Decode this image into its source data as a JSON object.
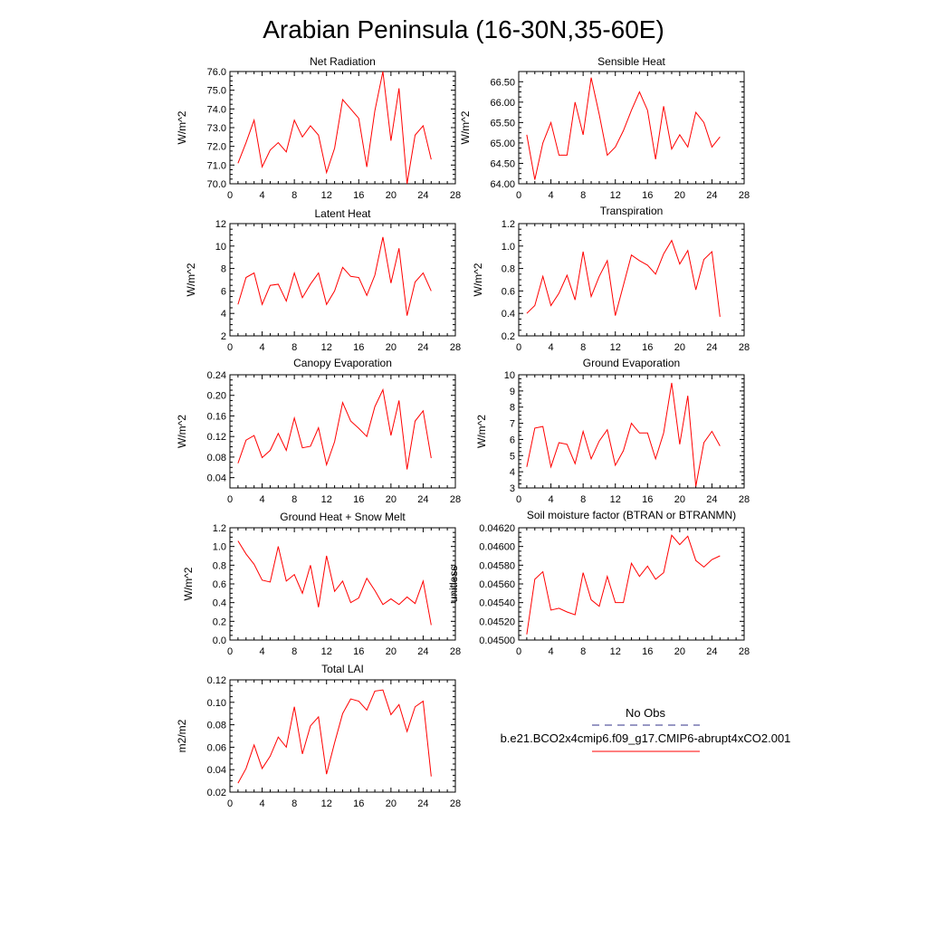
{
  "title": "Arabian Peninsula (16-30N,35-60E)",
  "legend": {
    "obs_label": "No Obs",
    "obs_color": "#5a5aa0",
    "model_label": "b.e21.BCO2x4cmip6.f09_g17.CMIP6-abrupt4xCO2.001",
    "model_color": "#ff0000"
  },
  "chart_data": [
    {
      "type": "line",
      "title": "Net Radiation",
      "ylabel": "W/m^2",
      "xlim": [
        0,
        28
      ],
      "xticks": [
        0,
        4,
        8,
        12,
        16,
        20,
        24,
        28
      ],
      "ylim": [
        70.0,
        76.0
      ],
      "yticks": [
        70.0,
        71.0,
        72.0,
        73.0,
        74.0,
        75.0,
        76.0
      ],
      "ytick_labels": [
        "70.0",
        "71.0",
        "72.0",
        "73.0",
        "74.0",
        "75.0",
        "76.0"
      ],
      "x": [
        1,
        2,
        3,
        4,
        5,
        6,
        7,
        8,
        9,
        10,
        11,
        12,
        13,
        14,
        15,
        16,
        17,
        18,
        19,
        20,
        21,
        22,
        23,
        24,
        25
      ],
      "series": [
        {
          "color": "#ff0000",
          "values": [
            71.1,
            72.2,
            73.4,
            70.9,
            71.8,
            72.2,
            71.7,
            73.4,
            72.5,
            73.1,
            72.6,
            70.6,
            71.9,
            74.5,
            74.0,
            73.5,
            70.9,
            73.9,
            76.0,
            72.3,
            75.1,
            70.0,
            72.6,
            73.1,
            71.3
          ]
        }
      ]
    },
    {
      "type": "line",
      "title": "Sensible Heat",
      "ylabel": "W/m^2",
      "xlim": [
        0,
        28
      ],
      "xticks": [
        0,
        4,
        8,
        12,
        16,
        20,
        24,
        28
      ],
      "ylim": [
        64.0,
        66.75
      ],
      "yticks": [
        64.0,
        64.5,
        65.0,
        65.5,
        66.0,
        66.5
      ],
      "ytick_labels": [
        "64.00",
        "64.50",
        "65.00",
        "65.50",
        "66.00",
        "66.50"
      ],
      "x": [
        1,
        2,
        3,
        4,
        5,
        6,
        7,
        8,
        9,
        10,
        11,
        12,
        13,
        14,
        15,
        16,
        17,
        18,
        19,
        20,
        21,
        22,
        23,
        24,
        25
      ],
      "series": [
        {
          "color": "#ff0000",
          "values": [
            65.2,
            64.1,
            65.0,
            65.5,
            64.7,
            64.7,
            66.0,
            65.2,
            66.6,
            65.7,
            64.7,
            64.9,
            65.3,
            65.8,
            66.25,
            65.8,
            64.6,
            65.9,
            64.85,
            65.2,
            64.9,
            65.75,
            65.5,
            64.9,
            65.15
          ]
        }
      ]
    },
    {
      "type": "line",
      "title": "Latent Heat",
      "ylabel": "W/m^2",
      "xlim": [
        0,
        28
      ],
      "xticks": [
        0,
        4,
        8,
        12,
        16,
        20,
        24,
        28
      ],
      "ylim": [
        2,
        12
      ],
      "yticks": [
        2,
        4,
        6,
        8,
        10,
        12
      ],
      "ytick_labels": [
        "2",
        "4",
        "6",
        "8",
        "10",
        "12"
      ],
      "x": [
        1,
        2,
        3,
        4,
        5,
        6,
        7,
        8,
        9,
        10,
        11,
        12,
        13,
        14,
        15,
        16,
        17,
        18,
        19,
        20,
        21,
        22,
        23,
        24,
        25
      ],
      "series": [
        {
          "color": "#ff0000",
          "values": [
            4.8,
            7.2,
            7.6,
            4.8,
            6.5,
            6.6,
            5.1,
            7.6,
            5.4,
            6.6,
            7.6,
            4.8,
            6.0,
            8.1,
            7.3,
            7.2,
            5.6,
            7.4,
            10.8,
            6.7,
            9.8,
            3.8,
            6.8,
            7.6,
            6.0
          ]
        }
      ]
    },
    {
      "type": "line",
      "title": "Transpiration",
      "ylabel": "W/m^2",
      "xlim": [
        0,
        28
      ],
      "xticks": [
        0,
        4,
        8,
        12,
        16,
        20,
        24,
        28
      ],
      "ylim": [
        0.2,
        1.2
      ],
      "yticks": [
        0.2,
        0.4,
        0.6,
        0.8,
        1.0,
        1.2
      ],
      "ytick_labels": [
        "0.2",
        "0.4",
        "0.6",
        "0.8",
        "1.0",
        "1.2"
      ],
      "x": [
        1,
        2,
        3,
        4,
        5,
        6,
        7,
        8,
        9,
        10,
        11,
        12,
        13,
        14,
        15,
        16,
        17,
        18,
        19,
        20,
        21,
        22,
        23,
        24,
        25
      ],
      "series": [
        {
          "color": "#ff0000",
          "values": [
            0.4,
            0.47,
            0.73,
            0.47,
            0.58,
            0.74,
            0.52,
            0.95,
            0.55,
            0.73,
            0.87,
            0.38,
            0.65,
            0.92,
            0.87,
            0.83,
            0.75,
            0.93,
            1.05,
            0.84,
            0.96,
            0.61,
            0.88,
            0.95,
            0.37
          ]
        }
      ]
    },
    {
      "type": "line",
      "title": "Canopy Evaporation",
      "ylabel": "W/m^2",
      "xlim": [
        0,
        28
      ],
      "xticks": [
        0,
        4,
        8,
        12,
        16,
        20,
        24,
        28
      ],
      "ylim": [
        0.02,
        0.24
      ],
      "yticks": [
        0.04,
        0.08,
        0.12,
        0.16,
        0.2,
        0.24
      ],
      "ytick_labels": [
        "0.04",
        "0.08",
        "0.12",
        "0.16",
        "0.20",
        "0.24"
      ],
      "x": [
        1,
        2,
        3,
        4,
        5,
        6,
        7,
        8,
        9,
        10,
        11,
        12,
        13,
        14,
        15,
        16,
        17,
        18,
        19,
        20,
        21,
        22,
        23,
        24,
        25
      ],
      "series": [
        {
          "color": "#ff0000",
          "values": [
            0.068,
            0.113,
            0.122,
            0.079,
            0.093,
            0.126,
            0.093,
            0.156,
            0.098,
            0.101,
            0.137,
            0.065,
            0.11,
            0.186,
            0.15,
            0.136,
            0.12,
            0.178,
            0.211,
            0.122,
            0.19,
            0.056,
            0.15,
            0.17,
            0.078
          ]
        }
      ]
    },
    {
      "type": "line",
      "title": "Ground Evaporation",
      "ylabel": "W/m^2",
      "xlim": [
        0,
        28
      ],
      "xticks": [
        0,
        4,
        8,
        12,
        16,
        20,
        24,
        28
      ],
      "ylim": [
        3,
        10
      ],
      "yticks": [
        3,
        4,
        5,
        6,
        7,
        8,
        9,
        10
      ],
      "ytick_labels": [
        "3",
        "4",
        "5",
        "6",
        "7",
        "8",
        "9",
        "10"
      ],
      "x": [
        1,
        2,
        3,
        4,
        5,
        6,
        7,
        8,
        9,
        10,
        11,
        12,
        13,
        14,
        15,
        16,
        17,
        18,
        19,
        20,
        21,
        22,
        23,
        24,
        25
      ],
      "series": [
        {
          "color": "#ff0000",
          "values": [
            4.3,
            6.7,
            6.8,
            4.3,
            5.8,
            5.7,
            4.5,
            6.5,
            4.8,
            5.9,
            6.6,
            4.4,
            5.3,
            7.0,
            6.4,
            6.4,
            4.8,
            6.4,
            9.5,
            5.7,
            8.7,
            3.1,
            5.8,
            6.5,
            5.6
          ]
        }
      ]
    },
    {
      "type": "line",
      "title": "Ground Heat + Snow Melt",
      "ylabel": "W/m^2",
      "xlim": [
        0,
        28
      ],
      "xticks": [
        0,
        4,
        8,
        12,
        16,
        20,
        24,
        28
      ],
      "ylim": [
        0.0,
        1.2
      ],
      "yticks": [
        0.0,
        0.2,
        0.4,
        0.6,
        0.8,
        1.0,
        1.2
      ],
      "ytick_labels": [
        "0.0",
        "0.2",
        "0.4",
        "0.6",
        "0.8",
        "1.0",
        "1.2"
      ],
      "x": [
        1,
        2,
        3,
        4,
        5,
        6,
        7,
        8,
        9,
        10,
        11,
        12,
        13,
        14,
        15,
        16,
        17,
        18,
        19,
        20,
        21,
        22,
        23,
        24,
        25
      ],
      "series": [
        {
          "color": "#ff0000",
          "values": [
            1.06,
            0.92,
            0.81,
            0.64,
            0.62,
            1.0,
            0.63,
            0.7,
            0.5,
            0.8,
            0.35,
            0.9,
            0.52,
            0.63,
            0.4,
            0.45,
            0.66,
            0.53,
            0.38,
            0.44,
            0.38,
            0.46,
            0.39,
            0.63,
            0.16
          ]
        }
      ]
    },
    {
      "type": "line",
      "title": "Soil moisture factor (BTRAN or BTRANMN)",
      "ylabel": "unitless",
      "xlim": [
        0,
        28
      ],
      "xticks": [
        0,
        4,
        8,
        12,
        16,
        20,
        24,
        28
      ],
      "ylim": [
        0.045,
        0.0462
      ],
      "yticks": [
        0.045,
        0.0452,
        0.0454,
        0.0456,
        0.0458,
        0.046,
        0.0462
      ],
      "ytick_labels": [
        "0.04500",
        "0.04520",
        "0.04540",
        "0.04560",
        "0.04580",
        "0.04600",
        "0.04620"
      ],
      "x": [
        1,
        2,
        3,
        4,
        5,
        6,
        7,
        8,
        9,
        10,
        11,
        12,
        13,
        14,
        15,
        16,
        17,
        18,
        19,
        20,
        21,
        22,
        23,
        24,
        25
      ],
      "series": [
        {
          "color": "#ff0000",
          "values": [
            0.04506,
            0.04565,
            0.04573,
            0.04532,
            0.04534,
            0.0453,
            0.04527,
            0.04572,
            0.04543,
            0.04536,
            0.04568,
            0.0454,
            0.0454,
            0.04582,
            0.04568,
            0.04579,
            0.04565,
            0.04572,
            0.04612,
            0.04602,
            0.04611,
            0.04585,
            0.04578,
            0.04586,
            0.0459
          ]
        }
      ]
    },
    {
      "type": "line",
      "title": "Total LAI",
      "ylabel": "m2/m2",
      "xlim": [
        0,
        28
      ],
      "xticks": [
        0,
        4,
        8,
        12,
        16,
        20,
        24,
        28
      ],
      "ylim": [
        0.02,
        0.12
      ],
      "yticks": [
        0.02,
        0.04,
        0.06,
        0.08,
        0.1,
        0.12
      ],
      "ytick_labels": [
        "0.02",
        "0.04",
        "0.06",
        "0.08",
        "0.10",
        "0.12"
      ],
      "x": [
        1,
        2,
        3,
        4,
        5,
        6,
        7,
        8,
        9,
        10,
        11,
        12,
        13,
        14,
        15,
        16,
        17,
        18,
        19,
        20,
        21,
        22,
        23,
        24,
        25
      ],
      "series": [
        {
          "color": "#ff0000",
          "values": [
            0.028,
            0.041,
            0.062,
            0.041,
            0.052,
            0.069,
            0.06,
            0.096,
            0.054,
            0.079,
            0.087,
            0.036,
            0.064,
            0.09,
            0.103,
            0.101,
            0.093,
            0.11,
            0.111,
            0.089,
            0.098,
            0.074,
            0.096,
            0.101,
            0.034
          ]
        }
      ]
    }
  ]
}
